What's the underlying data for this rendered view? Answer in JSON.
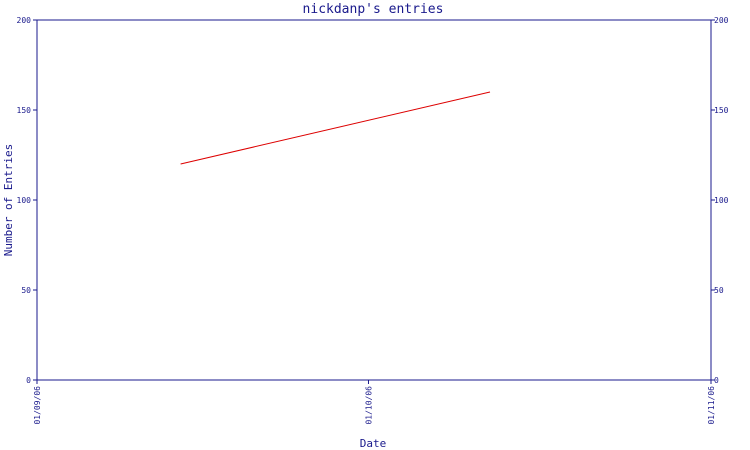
{
  "chart_data": {
    "type": "line",
    "title": "nickdanp's entries",
    "xlabel": "Date",
    "ylabel": "Number of Entries",
    "ylim": [
      0,
      200
    ],
    "y_ticks": [
      0,
      50,
      100,
      150,
      200
    ],
    "y_tick_labels": [
      "0",
      "50",
      "100",
      "150",
      "200"
    ],
    "xlim": [
      "2006-09-01",
      "2006-11-01"
    ],
    "x_ticks": [
      "2006-09-01",
      "2006-10-01",
      "2006-11-01"
    ],
    "x_tick_labels": [
      "01/09/06",
      "01/10/06",
      "01/11/06"
    ],
    "grid": false,
    "secondary_y_axis": true,
    "series": [
      {
        "color": "#dd0000",
        "points": [
          {
            "x": "2006-09-14",
            "y": 120
          },
          {
            "x": "2006-10-12",
            "y": 160
          }
        ]
      }
    ],
    "colors": {
      "axis": "#1a1a8c",
      "text": "#1a1a8c",
      "line": "#dd0000"
    }
  }
}
